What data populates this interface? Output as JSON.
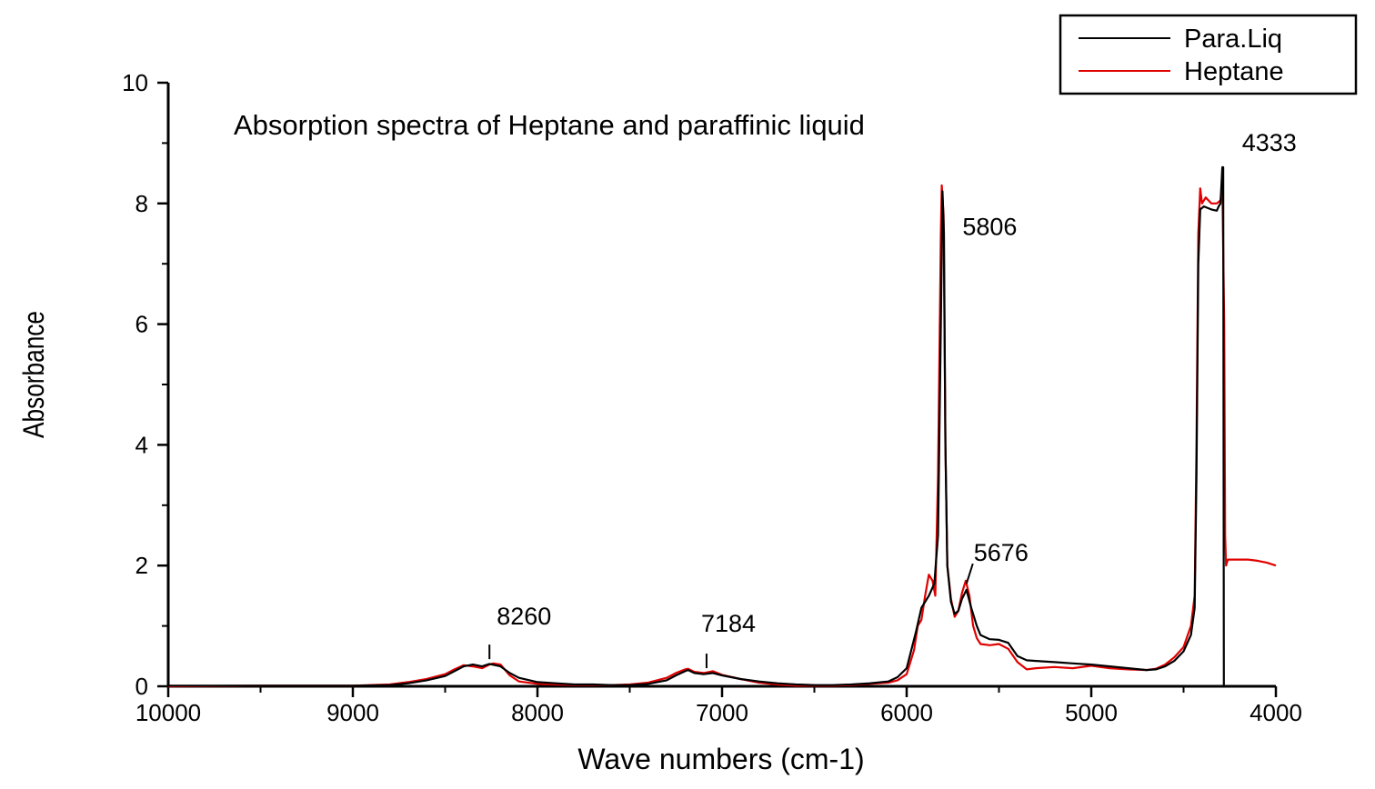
{
  "chart_data": {
    "type": "line",
    "title": "Absorption spectra of Heptane and paraffinic liquid",
    "xlabel": "Wave numbers (cm-1)",
    "ylabel": "Absorbance",
    "xlim": [
      10000,
      4000
    ],
    "ylim": [
      0,
      10
    ],
    "x_reversed": true,
    "x_ticks": [
      10000,
      9000,
      8000,
      7000,
      6000,
      5000,
      4000
    ],
    "x_tick_labels": [
      "10000",
      "9000",
      "8000",
      "7000",
      "6000",
      "5000",
      "4000"
    ],
    "y_ticks": [
      0,
      2,
      4,
      6,
      8,
      10
    ],
    "y_tick_labels": [
      "0",
      "2",
      "4",
      "6",
      "8",
      "10"
    ],
    "legend_position": "top-right",
    "series": [
      {
        "name": "Para.Liq",
        "color": "#000000",
        "points": [
          [
            10000,
            0.01
          ],
          [
            9500,
            0.01
          ],
          [
            9000,
            0.01
          ],
          [
            8800,
            0.02
          ],
          [
            8700,
            0.05
          ],
          [
            8600,
            0.1
          ],
          [
            8500,
            0.17
          ],
          [
            8450,
            0.25
          ],
          [
            8400,
            0.33
          ],
          [
            8350,
            0.36
          ],
          [
            8300,
            0.33
          ],
          [
            8260,
            0.37
          ],
          [
            8200,
            0.33
          ],
          [
            8150,
            0.22
          ],
          [
            8100,
            0.14
          ],
          [
            8000,
            0.07
          ],
          [
            7900,
            0.05
          ],
          [
            7800,
            0.03
          ],
          [
            7700,
            0.03
          ],
          [
            7600,
            0.02
          ],
          [
            7500,
            0.02
          ],
          [
            7400,
            0.04
          ],
          [
            7300,
            0.1
          ],
          [
            7250,
            0.18
          ],
          [
            7200,
            0.25
          ],
          [
            7184,
            0.27
          ],
          [
            7150,
            0.22
          ],
          [
            7100,
            0.2
          ],
          [
            7050,
            0.22
          ],
          [
            7000,
            0.18
          ],
          [
            6900,
            0.12
          ],
          [
            6800,
            0.08
          ],
          [
            6700,
            0.05
          ],
          [
            6600,
            0.03
          ],
          [
            6500,
            0.02
          ],
          [
            6400,
            0.02
          ],
          [
            6300,
            0.03
          ],
          [
            6200,
            0.05
          ],
          [
            6100,
            0.08
          ],
          [
            6050,
            0.15
          ],
          [
            6000,
            0.3
          ],
          [
            5950,
            0.9
          ],
          [
            5920,
            1.3
          ],
          [
            5880,
            1.5
          ],
          [
            5850,
            1.7
          ],
          [
            5830,
            2.5
          ],
          [
            5815,
            6.0
          ],
          [
            5806,
            8.2
          ],
          [
            5798,
            7.5
          ],
          [
            5790,
            4.0
          ],
          [
            5780,
            2.0
          ],
          [
            5760,
            1.4
          ],
          [
            5740,
            1.2
          ],
          [
            5720,
            1.25
          ],
          [
            5700,
            1.45
          ],
          [
            5676,
            1.6
          ],
          [
            5650,
            1.3
          ],
          [
            5620,
            1.0
          ],
          [
            5600,
            0.85
          ],
          [
            5550,
            0.78
          ],
          [
            5500,
            0.77
          ],
          [
            5450,
            0.72
          ],
          [
            5400,
            0.5
          ],
          [
            5350,
            0.43
          ],
          [
            5300,
            0.42
          ],
          [
            5200,
            0.4
          ],
          [
            5100,
            0.38
          ],
          [
            5000,
            0.36
          ],
          [
            4900,
            0.33
          ],
          [
            4800,
            0.3
          ],
          [
            4700,
            0.27
          ],
          [
            4650,
            0.28
          ],
          [
            4600,
            0.33
          ],
          [
            4550,
            0.42
          ],
          [
            4500,
            0.58
          ],
          [
            4460,
            0.85
          ],
          [
            4440,
            1.3
          ],
          [
            4430,
            3.5
          ],
          [
            4420,
            7.0
          ],
          [
            4410,
            7.9
          ],
          [
            4390,
            7.95
          ],
          [
            4350,
            7.9
          ],
          [
            4320,
            7.88
          ],
          [
            4310,
            7.95
          ],
          [
            4300,
            8.0
          ],
          [
            4290,
            8.6
          ],
          [
            4285,
            8.6
          ],
          [
            4282,
            0.0
          ]
        ]
      },
      {
        "name": "Heptane",
        "color": "#e00000",
        "points": [
          [
            10000,
            0.0
          ],
          [
            9500,
            0.01
          ],
          [
            9000,
            0.01
          ],
          [
            8800,
            0.03
          ],
          [
            8700,
            0.07
          ],
          [
            8600,
            0.12
          ],
          [
            8500,
            0.2
          ],
          [
            8450,
            0.28
          ],
          [
            8400,
            0.35
          ],
          [
            8350,
            0.33
          ],
          [
            8300,
            0.3
          ],
          [
            8260,
            0.36
          ],
          [
            8240,
            0.38
          ],
          [
            8200,
            0.36
          ],
          [
            8150,
            0.18
          ],
          [
            8100,
            0.08
          ],
          [
            8000,
            0.04
          ],
          [
            7900,
            0.03
          ],
          [
            7800,
            0.02
          ],
          [
            7700,
            0.02
          ],
          [
            7600,
            0.02
          ],
          [
            7500,
            0.03
          ],
          [
            7400,
            0.06
          ],
          [
            7300,
            0.14
          ],
          [
            7250,
            0.22
          ],
          [
            7200,
            0.28
          ],
          [
            7184,
            0.29
          ],
          [
            7150,
            0.24
          ],
          [
            7100,
            0.22
          ],
          [
            7050,
            0.25
          ],
          [
            7000,
            0.19
          ],
          [
            6900,
            0.12
          ],
          [
            6800,
            0.06
          ],
          [
            6700,
            0.03
          ],
          [
            6600,
            0.01
          ],
          [
            6500,
            0.01
          ],
          [
            6400,
            0.01
          ],
          [
            6300,
            0.02
          ],
          [
            6200,
            0.04
          ],
          [
            6100,
            0.06
          ],
          [
            6050,
            0.1
          ],
          [
            6000,
            0.2
          ],
          [
            5960,
            0.6
          ],
          [
            5940,
            1.0
          ],
          [
            5920,
            1.1
          ],
          [
            5900,
            1.5
          ],
          [
            5880,
            1.85
          ],
          [
            5860,
            1.75
          ],
          [
            5845,
            1.5
          ],
          [
            5830,
            3.5
          ],
          [
            5815,
            7.5
          ],
          [
            5810,
            8.3
          ],
          [
            5800,
            7.8
          ],
          [
            5790,
            4.0
          ],
          [
            5780,
            2.0
          ],
          [
            5760,
            1.45
          ],
          [
            5740,
            1.15
          ],
          [
            5720,
            1.25
          ],
          [
            5700,
            1.55
          ],
          [
            5680,
            1.75
          ],
          [
            5660,
            1.5
          ],
          [
            5640,
            1.0
          ],
          [
            5620,
            0.8
          ],
          [
            5600,
            0.7
          ],
          [
            5550,
            0.68
          ],
          [
            5500,
            0.7
          ],
          [
            5450,
            0.62
          ],
          [
            5400,
            0.4
          ],
          [
            5350,
            0.28
          ],
          [
            5300,
            0.3
          ],
          [
            5200,
            0.32
          ],
          [
            5100,
            0.3
          ],
          [
            5000,
            0.34
          ],
          [
            4900,
            0.3
          ],
          [
            4800,
            0.28
          ],
          [
            4700,
            0.27
          ],
          [
            4650,
            0.29
          ],
          [
            4600,
            0.36
          ],
          [
            4550,
            0.48
          ],
          [
            4500,
            0.65
          ],
          [
            4460,
            1.0
          ],
          [
            4440,
            1.5
          ],
          [
            4430,
            4.0
          ],
          [
            4420,
            7.5
          ],
          [
            4410,
            8.25
          ],
          [
            4400,
            8.0
          ],
          [
            4380,
            8.1
          ],
          [
            4350,
            8.0
          ],
          [
            4320,
            8.0
          ],
          [
            4300,
            8.05
          ],
          [
            4290,
            8.3
          ],
          [
            4280,
            6.0
          ],
          [
            4275,
            2.5
          ],
          [
            4270,
            2.0
          ],
          [
            4260,
            2.1
          ],
          [
            4200,
            2.1
          ],
          [
            4150,
            2.1
          ],
          [
            4100,
            2.08
          ],
          [
            4050,
            2.05
          ],
          [
            4000,
            2.0
          ]
        ]
      }
    ],
    "annotations": [
      {
        "text": "8260",
        "x": 8260,
        "y": 0.45,
        "marker": "tick"
      },
      {
        "text": "7184",
        "x": 7084,
        "y": 0.3,
        "marker": "tick"
      },
      {
        "text": "5806",
        "x": 5806,
        "y": 8.2,
        "marker": "none"
      },
      {
        "text": "5676",
        "x": 5676,
        "y": 1.7,
        "marker": "slash"
      },
      {
        "text": "4333",
        "x": 4282,
        "y": 8.6,
        "marker": "none"
      }
    ]
  }
}
